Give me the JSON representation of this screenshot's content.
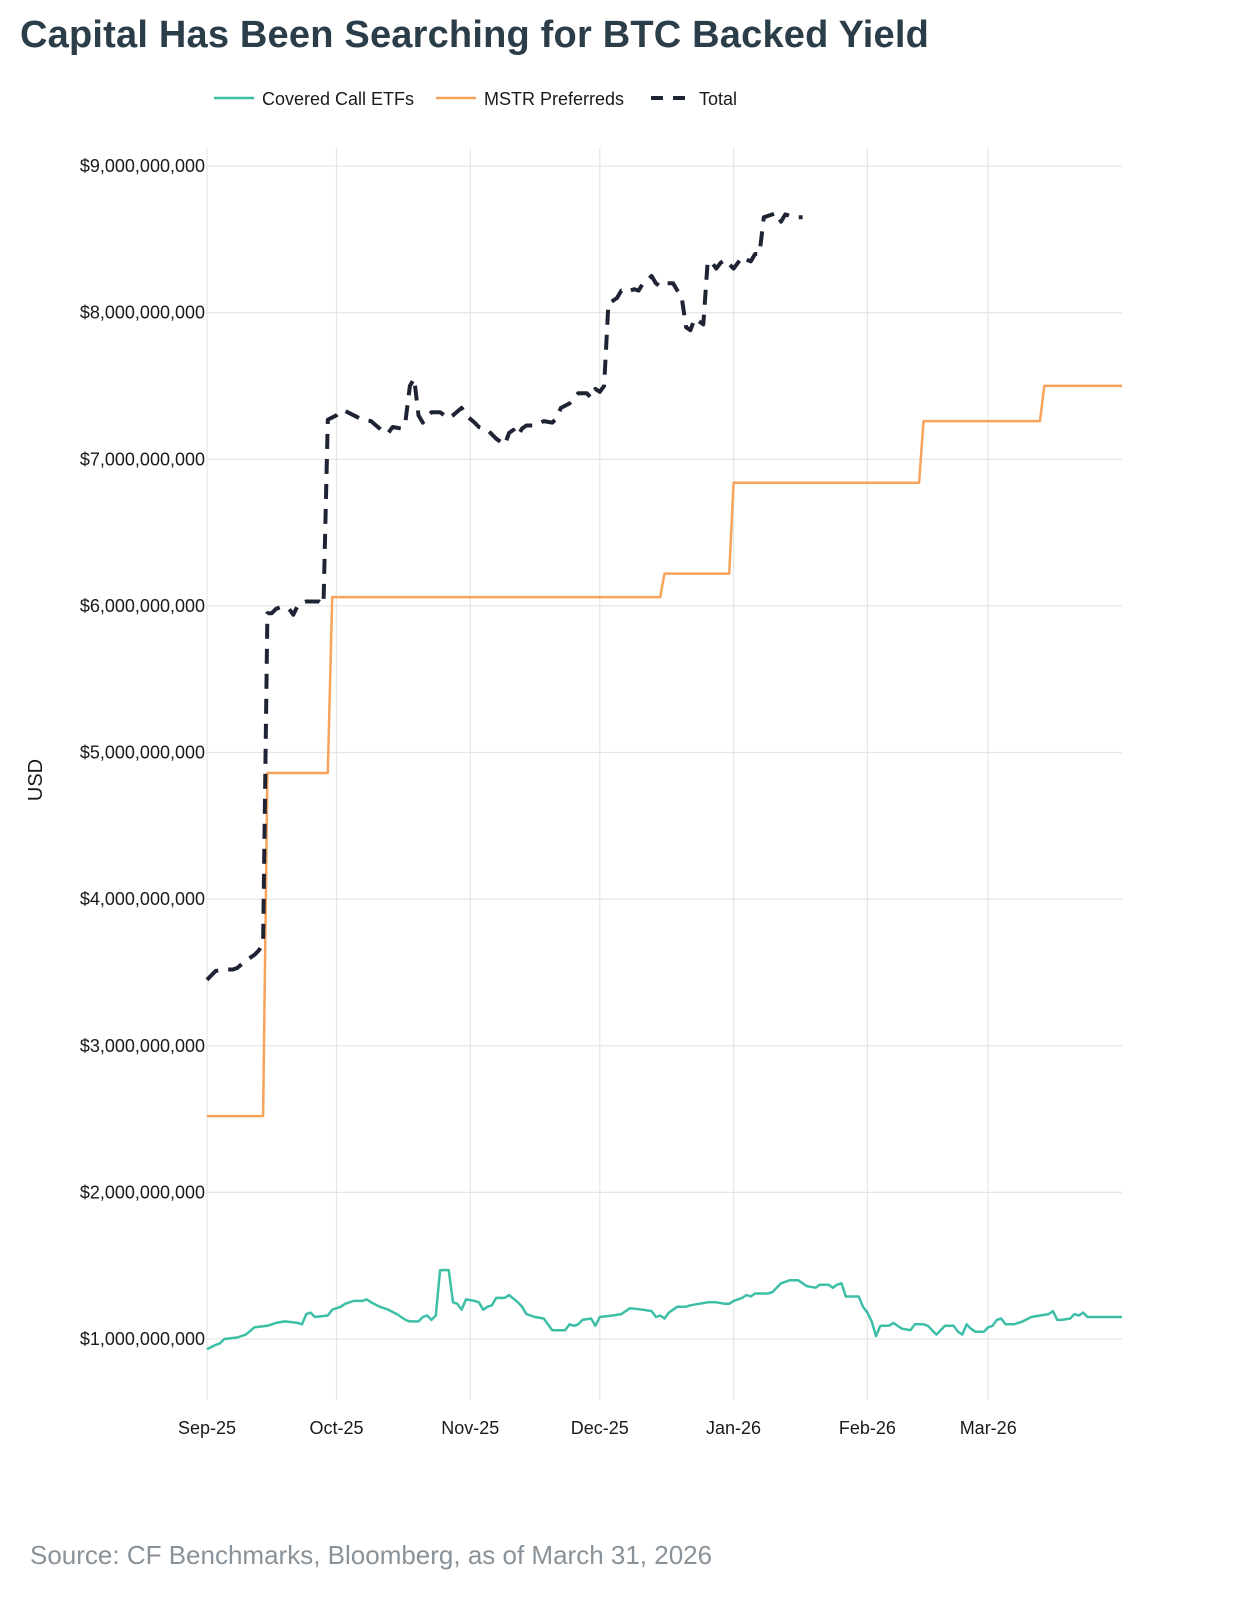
{
  "title": "Capital Has Been Searching for BTC Backed Yield",
  "source": "Source: CF Benchmarks, Bloomberg, as of March 31, 2026",
  "chart_data": {
    "type": "line",
    "ylabel": "USD",
    "xlabel": "",
    "ylim": [
      500000000,
      9300000000
    ],
    "xlim": [
      0,
      212
    ],
    "yticks": [
      {
        "value": 1000000000,
        "label": "$1,000,000,000"
      },
      {
        "value": 2000000000,
        "label": "$2,000,000,000"
      },
      {
        "value": 3000000000,
        "label": "$3,000,000,000"
      },
      {
        "value": 4000000000,
        "label": "$4,000,000,000"
      },
      {
        "value": 5000000000,
        "label": "$5,000,000,000"
      },
      {
        "value": 6000000000,
        "label": "$6,000,000,000"
      },
      {
        "value": 7000000000,
        "label": "$7,000,000,000"
      },
      {
        "value": 8000000000,
        "label": "$8,000,000,000"
      },
      {
        "value": 9000000000,
        "label": "$9,000,000,000"
      }
    ],
    "xticks": [
      {
        "value": 0,
        "label": "Sep-25"
      },
      {
        "value": 30,
        "label": "Oct-25"
      },
      {
        "value": 61,
        "label": "Nov-25"
      },
      {
        "value": 91,
        "label": "Dec-25"
      },
      {
        "value": 122,
        "label": "Jan-26"
      },
      {
        "value": 153,
        "label": "Feb-26"
      },
      {
        "value": 181,
        "label": "Mar-26"
      }
    ],
    "legend_position": "top",
    "grid": true,
    "series": [
      {
        "name": "Covered Call ETFs",
        "color": "#3dbfa7",
        "style": "solid",
        "points": [
          [
            0,
            0.93
          ],
          [
            2,
            0.96
          ],
          [
            3,
            0.97
          ],
          [
            4,
            1.0
          ],
          [
            7,
            1.01
          ],
          [
            9,
            1.03
          ],
          [
            11,
            1.08
          ],
          [
            14,
            1.09
          ],
          [
            16,
            1.11
          ],
          [
            18,
            1.12
          ],
          [
            21,
            1.11
          ],
          [
            22,
            1.1
          ],
          [
            23,
            1.17
          ],
          [
            24,
            1.18
          ],
          [
            25,
            1.15
          ],
          [
            28,
            1.16
          ],
          [
            29,
            1.2
          ],
          [
            31,
            1.22
          ],
          [
            32,
            1.24
          ],
          [
            34,
            1.26
          ],
          [
            36,
            1.26
          ],
          [
            37,
            1.27
          ],
          [
            38,
            1.25
          ],
          [
            40,
            1.22
          ],
          [
            42,
            1.2
          ],
          [
            44,
            1.17
          ],
          [
            46,
            1.13
          ],
          [
            47,
            1.12
          ],
          [
            49,
            1.12
          ],
          [
            50,
            1.15
          ],
          [
            51,
            1.16
          ],
          [
            52,
            1.13
          ],
          [
            53,
            1.16
          ],
          [
            54,
            1.47
          ],
          [
            56,
            1.47
          ],
          [
            57,
            1.25
          ],
          [
            58,
            1.24
          ],
          [
            59,
            1.2
          ],
          [
            60,
            1.27
          ],
          [
            62,
            1.26
          ],
          [
            63,
            1.25
          ],
          [
            64,
            1.2
          ],
          [
            65,
            1.22
          ],
          [
            66,
            1.23
          ],
          [
            67,
            1.28
          ],
          [
            69,
            1.28
          ],
          [
            70,
            1.3
          ],
          [
            72,
            1.25
          ],
          [
            73,
            1.22
          ],
          [
            74,
            1.17
          ],
          [
            76,
            1.15
          ],
          [
            78,
            1.14
          ],
          [
            80,
            1.06
          ],
          [
            83,
            1.06
          ],
          [
            84,
            1.1
          ],
          [
            85,
            1.09
          ],
          [
            86,
            1.1
          ],
          [
            87,
            1.13
          ],
          [
            89,
            1.14
          ],
          [
            90,
            1.09
          ],
          [
            91,
            1.15
          ],
          [
            94,
            1.16
          ],
          [
            96,
            1.17
          ],
          [
            98,
            1.21
          ],
          [
            101,
            1.2
          ],
          [
            103,
            1.19
          ],
          [
            104,
            1.15
          ],
          [
            105,
            1.16
          ],
          [
            106,
            1.14
          ],
          [
            107,
            1.18
          ],
          [
            108,
            1.2
          ],
          [
            109,
            1.22
          ],
          [
            111,
            1.22
          ],
          [
            112,
            1.23
          ],
          [
            114,
            1.24
          ],
          [
            116,
            1.25
          ],
          [
            118,
            1.25
          ],
          [
            120,
            1.24
          ],
          [
            121,
            1.24
          ],
          [
            122,
            1.26
          ],
          [
            123,
            1.27
          ],
          [
            124,
            1.28
          ],
          [
            125,
            1.3
          ],
          [
            126,
            1.29
          ],
          [
            127,
            1.31
          ],
          [
            130,
            1.31
          ],
          [
            131,
            1.32
          ],
          [
            132,
            1.35
          ],
          [
            133,
            1.38
          ],
          [
            135,
            1.4
          ],
          [
            137,
            1.4
          ],
          [
            138,
            1.38
          ],
          [
            139,
            1.36
          ],
          [
            141,
            1.35
          ],
          [
            142,
            1.37
          ],
          [
            144,
            1.37
          ],
          [
            145,
            1.35
          ],
          [
            146,
            1.37
          ],
          [
            147,
            1.38
          ],
          [
            148,
            1.29
          ],
          [
            151,
            1.29
          ],
          [
            152,
            1.22
          ],
          [
            153,
            1.18
          ],
          [
            154,
            1.12
          ],
          [
            155,
            1.02
          ],
          [
            156,
            1.09
          ],
          [
            158,
            1.09
          ],
          [
            159,
            1.11
          ],
          [
            161,
            1.07
          ],
          [
            163,
            1.06
          ],
          [
            164,
            1.1
          ],
          [
            166,
            1.1
          ],
          [
            167,
            1.09
          ],
          [
            168,
            1.06
          ],
          [
            169,
            1.03
          ],
          [
            170,
            1.06
          ],
          [
            171,
            1.09
          ],
          [
            173,
            1.09
          ],
          [
            174,
            1.05
          ],
          [
            175,
            1.03
          ],
          [
            176,
            1.1
          ],
          [
            177,
            1.07
          ],
          [
            178,
            1.05
          ],
          [
            180,
            1.05
          ],
          [
            181,
            1.08
          ],
          [
            182,
            1.09
          ],
          [
            183,
            1.13
          ],
          [
            184,
            1.14
          ],
          [
            185,
            1.1
          ],
          [
            187,
            1.1
          ],
          [
            189,
            1.12
          ],
          [
            191,
            1.15
          ],
          [
            193,
            1.16
          ],
          [
            195,
            1.17
          ],
          [
            196,
            1.19
          ],
          [
            197,
            1.13
          ],
          [
            198,
            1.13
          ],
          [
            200,
            1.14
          ],
          [
            201,
            1.17
          ],
          [
            202,
            1.16
          ],
          [
            203,
            1.18
          ],
          [
            204,
            1.15
          ],
          [
            206,
            1.15
          ],
          [
            212,
            1.15
          ]
        ]
      },
      {
        "name": "MSTR Preferreds",
        "color": "#f7a35c",
        "style": "solid",
        "points": [
          [
            0,
            2.52
          ],
          [
            13,
            2.52
          ],
          [
            14,
            4.86
          ],
          [
            28,
            4.86
          ],
          [
            29,
            6.06
          ],
          [
            105,
            6.06
          ],
          [
            106,
            6.22
          ],
          [
            121,
            6.22
          ],
          [
            122,
            6.84
          ],
          [
            165,
            6.84
          ],
          [
            166,
            7.26
          ],
          [
            193,
            7.26
          ],
          [
            194,
            7.5
          ],
          [
            212,
            7.5
          ]
        ]
      },
      {
        "name": "Total",
        "color": "#1e2433",
        "style": "dashed",
        "points": [
          [
            0,
            3.45
          ],
          [
            1,
            3.48
          ],
          [
            2,
            3.51
          ],
          [
            4,
            3.52
          ],
          [
            6,
            3.52
          ],
          [
            7,
            3.53
          ],
          [
            9,
            3.58
          ],
          [
            11,
            3.62
          ],
          [
            12,
            3.65
          ],
          [
            13,
            3.7
          ],
          [
            14,
            5.95
          ],
          [
            15,
            5.95
          ],
          [
            16,
            5.98
          ],
          [
            17,
            5.99
          ],
          [
            19,
            5.98
          ],
          [
            20,
            5.94
          ],
          [
            21,
            6.0
          ],
          [
            22,
            6.02
          ],
          [
            23,
            6.03
          ],
          [
            26,
            6.03
          ],
          [
            27,
            6.01
          ],
          [
            28,
            7.27
          ],
          [
            30,
            7.3
          ],
          [
            31,
            7.33
          ],
          [
            32,
            7.33
          ],
          [
            34,
            7.3
          ],
          [
            36,
            7.27
          ],
          [
            38,
            7.26
          ],
          [
            40,
            7.21
          ],
          [
            41,
            7.18
          ],
          [
            42,
            7.18
          ],
          [
            43,
            7.22
          ],
          [
            45,
            7.21
          ],
          [
            46,
            7.26
          ],
          [
            47,
            7.5
          ],
          [
            48,
            7.55
          ],
          [
            49,
            7.3
          ],
          [
            50,
            7.25
          ],
          [
            51,
            7.29
          ],
          [
            52,
            7.32
          ],
          [
            53,
            7.32
          ],
          [
            54,
            7.32
          ],
          [
            56,
            7.28
          ],
          [
            57,
            7.3
          ],
          [
            59,
            7.35
          ],
          [
            60,
            7.3
          ],
          [
            62,
            7.25
          ],
          [
            63,
            7.22
          ],
          [
            65,
            7.2
          ],
          [
            67,
            7.14
          ],
          [
            68,
            7.12
          ],
          [
            69,
            7.1
          ],
          [
            70,
            7.18
          ],
          [
            71,
            7.2
          ],
          [
            72,
            7.16
          ],
          [
            73,
            7.21
          ],
          [
            74,
            7.23
          ],
          [
            76,
            7.23
          ],
          [
            78,
            7.26
          ],
          [
            80,
            7.25
          ],
          [
            81,
            7.28
          ],
          [
            82,
            7.35
          ],
          [
            84,
            7.38
          ],
          [
            86,
            7.45
          ],
          [
            88,
            7.45
          ],
          [
            89,
            7.42
          ],
          [
            90,
            7.48
          ],
          [
            91,
            7.46
          ],
          [
            92,
            7.5
          ],
          [
            93,
            8.06
          ],
          [
            94,
            8.08
          ],
          [
            95,
            8.1
          ],
          [
            96,
            8.15
          ],
          [
            97,
            8.14
          ],
          [
            99,
            8.16
          ],
          [
            100,
            8.15
          ],
          [
            101,
            8.2
          ],
          [
            102,
            8.22
          ],
          [
            103,
            8.25
          ],
          [
            104,
            8.2
          ],
          [
            105,
            8.18
          ],
          [
            106,
            8.2
          ],
          [
            108,
            8.2
          ],
          [
            109,
            8.15
          ],
          [
            110,
            8.1
          ],
          [
            111,
            7.9
          ],
          [
            112,
            7.88
          ],
          [
            113,
            7.96
          ],
          [
            114,
            7.94
          ],
          [
            115,
            7.92
          ],
          [
            116,
            8.35
          ],
          [
            117,
            8.34
          ],
          [
            118,
            8.3
          ],
          [
            119,
            8.34
          ],
          [
            120,
            8.36
          ],
          [
            121,
            8.33
          ],
          [
            122,
            8.3
          ],
          [
            123,
            8.34
          ],
          [
            124,
            8.38
          ],
          [
            125,
            8.36
          ],
          [
            126,
            8.35
          ],
          [
            127,
            8.4
          ],
          [
            128,
            8.4
          ],
          [
            129,
            8.65
          ],
          [
            131,
            8.67
          ],
          [
            132,
            8.68
          ],
          [
            133,
            8.62
          ],
          [
            134,
            8.67
          ],
          [
            135,
            8.66
          ],
          [
            136,
            8.65
          ],
          [
            138,
            8.65
          ]
        ]
      }
    ]
  },
  "legend": [
    {
      "label": "Covered Call ETFs",
      "color": "#3dbfa7",
      "style": "solid"
    },
    {
      "label": "MSTR Preferreds",
      "color": "#f7a35c",
      "style": "dashed-none"
    },
    {
      "label": "Total",
      "color": "#1e2433",
      "style": "dashed"
    }
  ]
}
